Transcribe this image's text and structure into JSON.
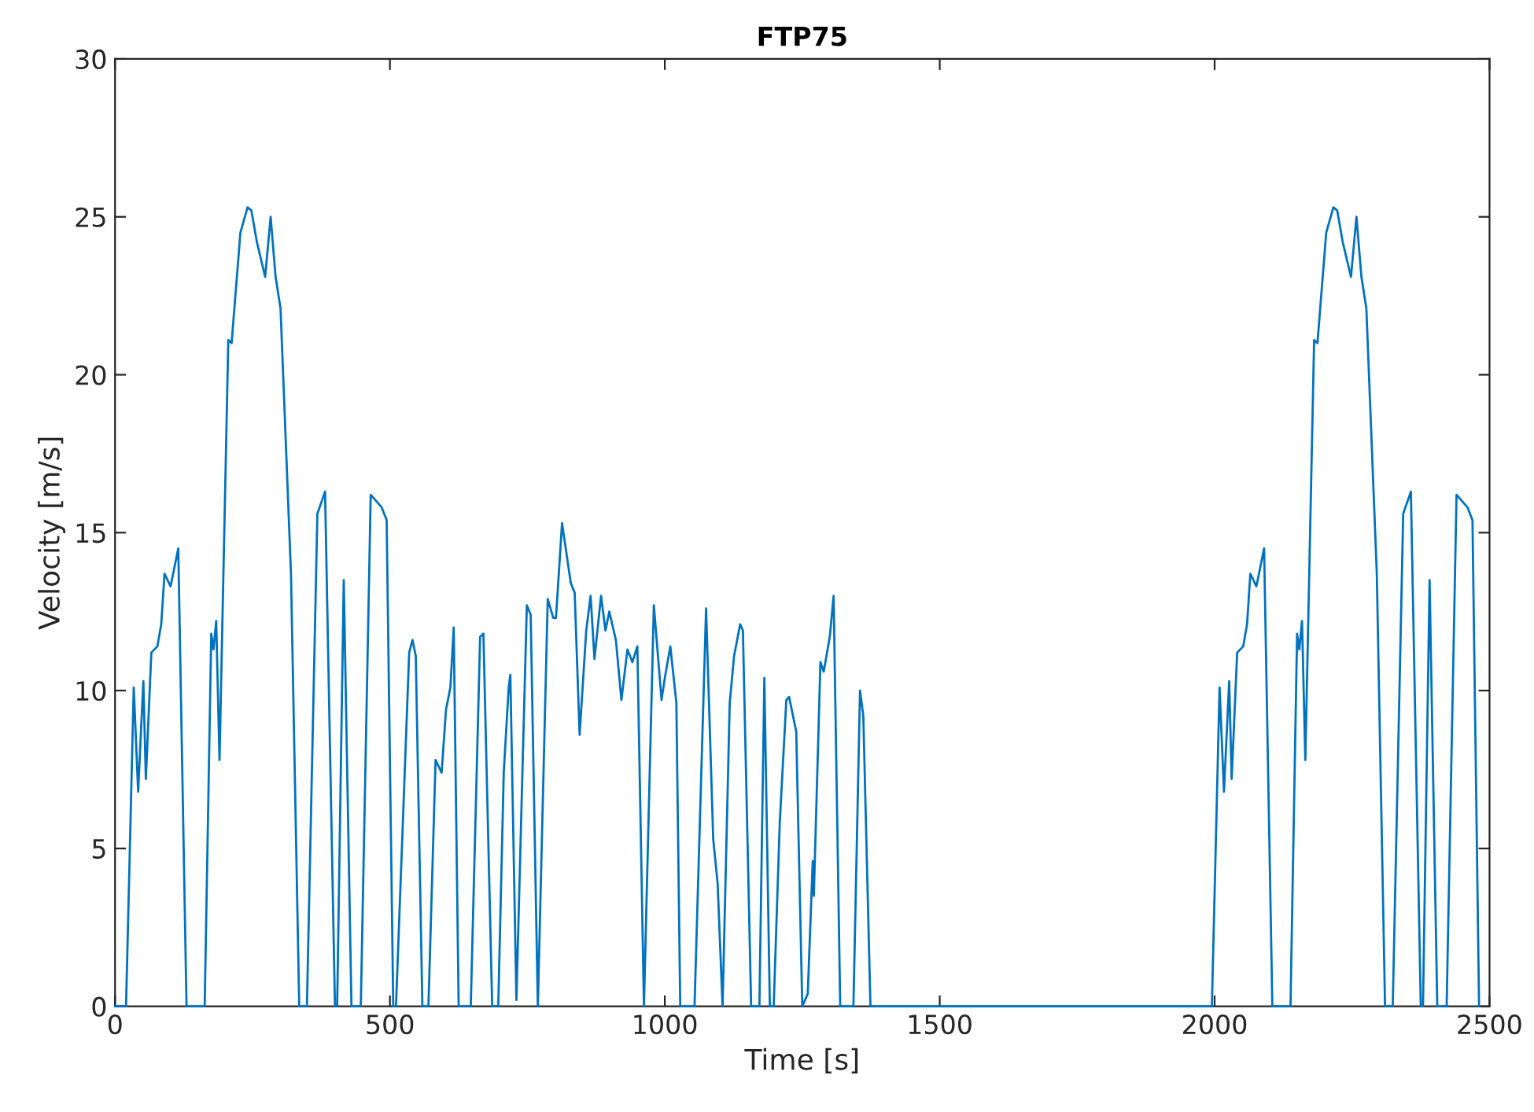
{
  "chart_data": {
    "type": "line",
    "title": "FTP75",
    "xlabel": "Time [s]",
    "ylabel": "Velocity [m/s]",
    "xlim": [
      0,
      2500
    ],
    "ylim": [
      0,
      30
    ],
    "xticks": [
      0,
      500,
      1000,
      1500,
      2000,
      2500
    ],
    "yticks": [
      0,
      5,
      10,
      15,
      20,
      25,
      30
    ],
    "grid": false,
    "marker": "none",
    "line_style": "solid",
    "series": [
      {
        "color": "#0072bd",
        "x": [
          0,
          20,
          34,
          42,
          51.5,
          56,
          66,
          77,
          84,
          90,
          101,
          108,
          115,
          130,
          163,
          175,
          179,
          184,
          190,
          206,
          212,
          228,
          241,
          248,
          258,
          273,
          283,
          292,
          301,
          320,
          335,
          349,
          368,
          382,
          400,
          404,
          416,
          430,
          447,
          465,
          485,
          494,
          506,
          511,
          535,
          541,
          547,
          559,
          570,
          583,
          594,
          602,
          610,
          616,
          625,
          647,
          664,
          670,
          686,
          697,
          707,
          716,
          719,
          730,
          749,
          756,
          769,
          787,
          797,
          802,
          813,
          829,
          836,
          845,
          857,
          865,
          872,
          884,
          892,
          899,
          911,
          921,
          932,
          941,
          950,
          962,
          980,
          994,
          1000,
          1010,
          1021,
          1028,
          1054,
          1075,
          1088,
          1096,
          1105,
          1118,
          1126,
          1137,
          1142,
          1157,
          1172,
          1181,
          1191,
          1198,
          1209,
          1221,
          1226,
          1239,
          1250,
          1260,
          1269,
          1271,
          1283,
          1289,
          1300,
          1307,
          1319,
          1343,
          1355,
          1361,
          1374,
          1995,
          2009,
          2017,
          2026.5,
          2031,
          2041,
          2052,
          2059,
          2065,
          2076,
          2083,
          2090,
          2105,
          2138,
          2150,
          2154,
          2159,
          2165,
          2181,
          2187,
          2203,
          2216,
          2223,
          2233,
          2248,
          2258,
          2267,
          2276,
          2295,
          2310,
          2324,
          2343,
          2357,
          2375,
          2379,
          2391,
          2405,
          2422,
          2440,
          2460,
          2469,
          2481
        ],
        "values": [
          0,
          0,
          10.1,
          6.8,
          10.3,
          7.2,
          11.2,
          11.4,
          12.1,
          13.7,
          13.3,
          13.9,
          14.5,
          0,
          0,
          11.8,
          11.3,
          12.2,
          7.8,
          21.1,
          21.0,
          24.5,
          25.3,
          25.2,
          24.2,
          23.1,
          25.0,
          23.1,
          22.1,
          13.7,
          0,
          0,
          15.6,
          16.3,
          0,
          0,
          13.5,
          0,
          0,
          16.2,
          15.8,
          15.4,
          0,
          0,
          11.2,
          11.6,
          11.1,
          0,
          0,
          7.8,
          7.4,
          9.4,
          10.1,
          12.0,
          0,
          0,
          11.7,
          11.8,
          0,
          0,
          7.4,
          10.1,
          10.5,
          0.2,
          12.7,
          12.4,
          0,
          12.9,
          12.3,
          12.3,
          15.3,
          13.4,
          13.1,
          8.6,
          11.9,
          13.0,
          11.0,
          13.0,
          11.9,
          12.5,
          11.6,
          9.7,
          11.3,
          10.9,
          11.4,
          0,
          12.7,
          9.7,
          10.4,
          11.4,
          9.6,
          0,
          0,
          12.6,
          5.3,
          3.9,
          0,
          9.6,
          11.1,
          12.1,
          11.9,
          0,
          0,
          10.4,
          0,
          0,
          5.8,
          9.7,
          9.8,
          8.7,
          0,
          0.4,
          4.6,
          3.5,
          10.9,
          10.6,
          11.7,
          13.0,
          0,
          0,
          10.0,
          9.2,
          0,
          0,
          10.1,
          6.8,
          10.3,
          7.2,
          11.2,
          11.4,
          12.1,
          13.7,
          13.3,
          13.9,
          14.5,
          0,
          0,
          11.8,
          11.3,
          12.2,
          7.8,
          21.1,
          21.0,
          24.5,
          25.3,
          25.2,
          24.2,
          23.1,
          25.0,
          23.1,
          22.1,
          13.7,
          0,
          0,
          15.6,
          16.3,
          0,
          0,
          13.5,
          0,
          0,
          16.2,
          15.8,
          15.4,
          0
        ]
      }
    ]
  }
}
